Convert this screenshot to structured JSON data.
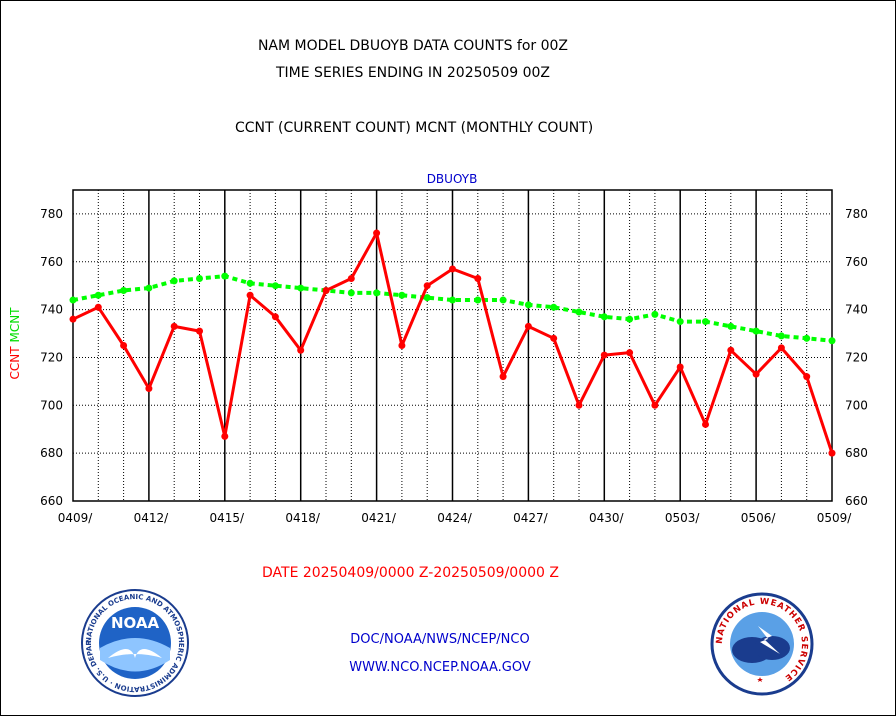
{
  "header": {
    "title_line1": "NAM MODEL DBUOYB DATA COUNTS for 00Z",
    "title_line2": "TIME SERIES ENDING IN 20250509 00Z",
    "subtitle": "CCNT (CURRENT COUNT) MCNT (MONTHLY COUNT)"
  },
  "footer": {
    "date_range": "DATE 20250409/0000 Z-20250509/0000 Z",
    "link1": "DOC/NOAA/NWS/NCEP/NCO",
    "link2": "WWW.NCO.NCEP.NOAA.GOV"
  },
  "logos": {
    "noaa_text": "NOAA",
    "noaa_ring": "NATIONAL OCEANIC AND ATMOSPHERIC ADMINISTRATION · U.S. DEPARTMENT OF COMMERCE",
    "nws_ring": "NATIONAL WEATHER SERVICE"
  },
  "chart_data": {
    "type": "line",
    "title": "DBUOYB",
    "ylabel_series": [
      {
        "text": "CCNT",
        "color": "#ff0000"
      },
      {
        "text": "MCNT",
        "color": "#00ff00"
      }
    ],
    "ylim": [
      660,
      790
    ],
    "y_ticks": [
      660,
      680,
      700,
      720,
      740,
      760,
      780
    ],
    "x_range": [
      0,
      30
    ],
    "x_tick_labels": [
      {
        "x": 0,
        "label": "0409/"
      },
      {
        "x": 3,
        "label": "0412/"
      },
      {
        "x": 6,
        "label": "0415/"
      },
      {
        "x": 9,
        "label": "0418/"
      },
      {
        "x": 12,
        "label": "0421/"
      },
      {
        "x": 15,
        "label": "0424/"
      },
      {
        "x": 18,
        "label": "0427/"
      },
      {
        "x": 21,
        "label": "0430/"
      },
      {
        "x": 24,
        "label": "0503/"
      },
      {
        "x": 27,
        "label": "0506/"
      },
      {
        "x": 30,
        "label": "0509/"
      }
    ],
    "grid": true,
    "series": [
      {
        "name": "CCNT",
        "color": "#ff0000",
        "style": "solid",
        "values": [
          736,
          741,
          725,
          707,
          733,
          731,
          687,
          746,
          737,
          723,
          748,
          753,
          772,
          725,
          750,
          757,
          753,
          712,
          733,
          728,
          700,
          721,
          722,
          700,
          716,
          692,
          723,
          713,
          724,
          712,
          680
        ]
      },
      {
        "name": "MCNT",
        "color": "#00ff00",
        "style": "dotted",
        "values": [
          744,
          746,
          748,
          749,
          752,
          753,
          754,
          751,
          750,
          749,
          748,
          747,
          747,
          746,
          745,
          744,
          744,
          744,
          742,
          741,
          739,
          737,
          736,
          738,
          735,
          735,
          733,
          731,
          729,
          728,
          727
        ]
      }
    ]
  }
}
